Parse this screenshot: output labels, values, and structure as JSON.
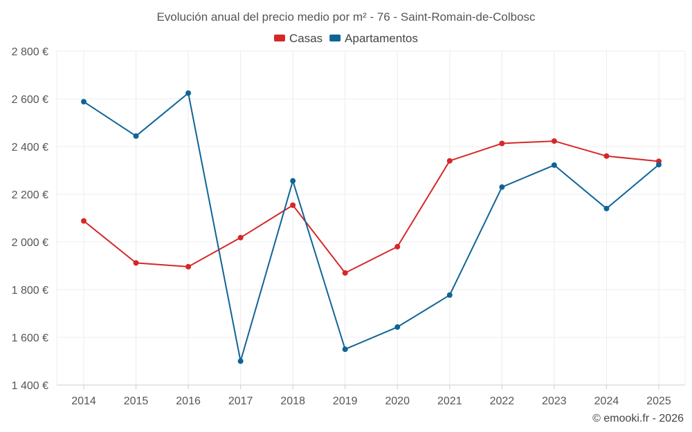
{
  "chart_data": {
    "type": "line",
    "title": "Evolución anual del precio medio por m² - 76 - Saint-Romain-de-Colbosc",
    "categories": [
      "2014",
      "2015",
      "2016",
      "2017",
      "2018",
      "2019",
      "2020",
      "2021",
      "2022",
      "2023",
      "2024",
      "2025"
    ],
    "series": [
      {
        "name": "Casas",
        "color": "#d62728",
        "values": [
          2088,
          1912,
          1896,
          2018,
          2154,
          1870,
          1980,
          2340,
          2413,
          2423,
          2360,
          2338
        ]
      },
      {
        "name": "Apartamentos",
        "color": "#0f6496",
        "values": [
          2588,
          2444,
          2624,
          1500,
          2256,
          1550,
          1643,
          1777,
          2230,
          2322,
          2140,
          2324
        ]
      }
    ],
    "ylim": [
      1400,
      2800
    ],
    "yticks": [
      1400,
      1600,
      1800,
      2000,
      2200,
      2400,
      2600,
      2800
    ],
    "ytick_labels": [
      "1 400 €",
      "1 600 €",
      "1 800 €",
      "2 000 €",
      "2 200 €",
      "2 400 €",
      "2 600 €",
      "2 800 €"
    ],
    "legend_position": "top-center",
    "grid": true
  },
  "credit": "© emooki.fr - 2026"
}
